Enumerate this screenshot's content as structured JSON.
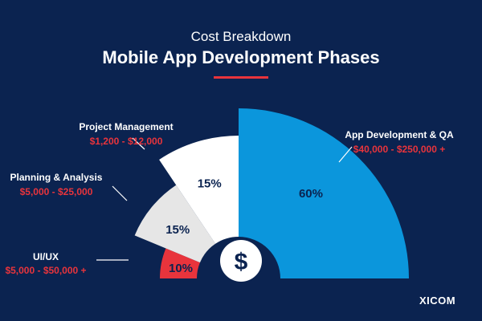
{
  "header": {
    "subtitle": "Cost Breakdown",
    "title": "Mobile App Development Phases"
  },
  "brand": {
    "name": "XICOM"
  },
  "colors": {
    "background": "#0b2350",
    "accent": "#e8343c",
    "ux": "#e8343c",
    "planning": "#e6e6e6",
    "management": "#ffffff",
    "development": "#0b96dc",
    "center": "#ffffff",
    "dollar": "#0b2350"
  },
  "center_icon": {
    "glyph": "$",
    "name": "dollar-icon"
  },
  "chart_data": {
    "type": "pie",
    "subtype": "semi-circle radial segments",
    "title": "Mobile App Development Phases",
    "subtitle": "Cost Breakdown",
    "units": "percent of cost",
    "segments": [
      {
        "name": "UI/UX",
        "value": 10,
        "label": "10%",
        "range": "$5,000 - $50,000 +",
        "color": "#e8343c",
        "fill": "#e8343c",
        "text_color": "#0b2350"
      },
      {
        "name": "Planning & Analysis",
        "value": 15,
        "label": "15%",
        "range": "$5,000 - $25,000",
        "color": "#e6e6e6",
        "fill": "#e6e6e6",
        "text_color": "#0b2350"
      },
      {
        "name": "Project Management",
        "value": 15,
        "label": "15%",
        "range": "$1,200 - $12,000",
        "color": "#ffffff",
        "fill": "#ffffff",
        "text_color": "#0b2350"
      },
      {
        "name": "App Development & QA",
        "value": 60,
        "label": "60%",
        "range": "$40,000 - $250,000 +",
        "color": "#0b96dc",
        "fill": "#0b96dc",
        "text_color": "#0b2350"
      }
    ]
  }
}
